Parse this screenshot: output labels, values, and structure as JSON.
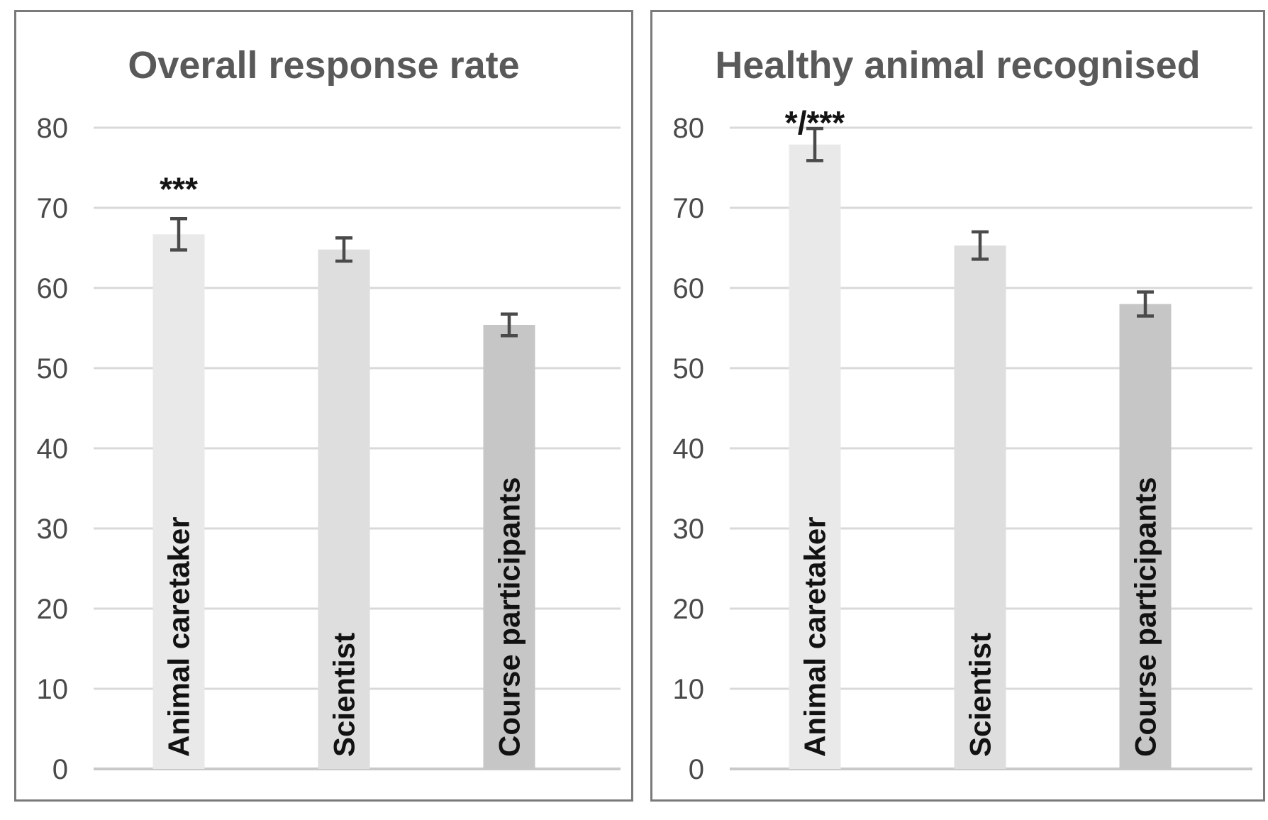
{
  "figure": {
    "description": "Two side-by-side grouped bar charts with standard-error bars and significance asterisks",
    "background": "#ffffff"
  },
  "colors": {
    "panel_border": "#7a7a7a",
    "gridline": "#d9d9d9",
    "axis_baseline": "#c9c9c9",
    "error_bar": "#4a4a4a",
    "title_text": "#595959",
    "tick_label_text": "#4a4a4a",
    "category_label_text": "#121212",
    "annotation_text": "#141414",
    "bar_fills": [
      "#e9e9e9",
      "#dedede",
      "#c6c6c6"
    ]
  },
  "chart_data": [
    {
      "type": "bar",
      "title": "Overall response rate",
      "categories": [
        "Animal caretaker",
        "Scientist",
        "Course participants"
      ],
      "values": [
        66.7,
        64.8,
        55.4
      ],
      "error_plus_minus": [
        1.95,
        1.45,
        1.35
      ],
      "annotations": [
        {
          "text": "***",
          "category_index": 0
        }
      ],
      "xlabel": "",
      "ylabel": "",
      "ylim": [
        0,
        80
      ],
      "yticks": [
        0,
        10,
        20,
        30,
        40,
        50,
        60,
        70,
        80
      ],
      "grid": true,
      "legend": false
    },
    {
      "type": "bar",
      "title": "Healthy animal recognised",
      "categories": [
        "Animal caretaker",
        "Scientist",
        "Course participants"
      ],
      "values": [
        77.9,
        65.3,
        58.0
      ],
      "error_plus_minus": [
        2.0,
        1.7,
        1.5
      ],
      "annotations": [
        {
          "text": "*/***",
          "category_index": 0
        }
      ],
      "xlabel": "",
      "ylabel": "",
      "ylim": [
        0,
        80
      ],
      "yticks": [
        0,
        10,
        20,
        30,
        40,
        50,
        60,
        70,
        80
      ],
      "grid": true,
      "legend": false
    }
  ]
}
